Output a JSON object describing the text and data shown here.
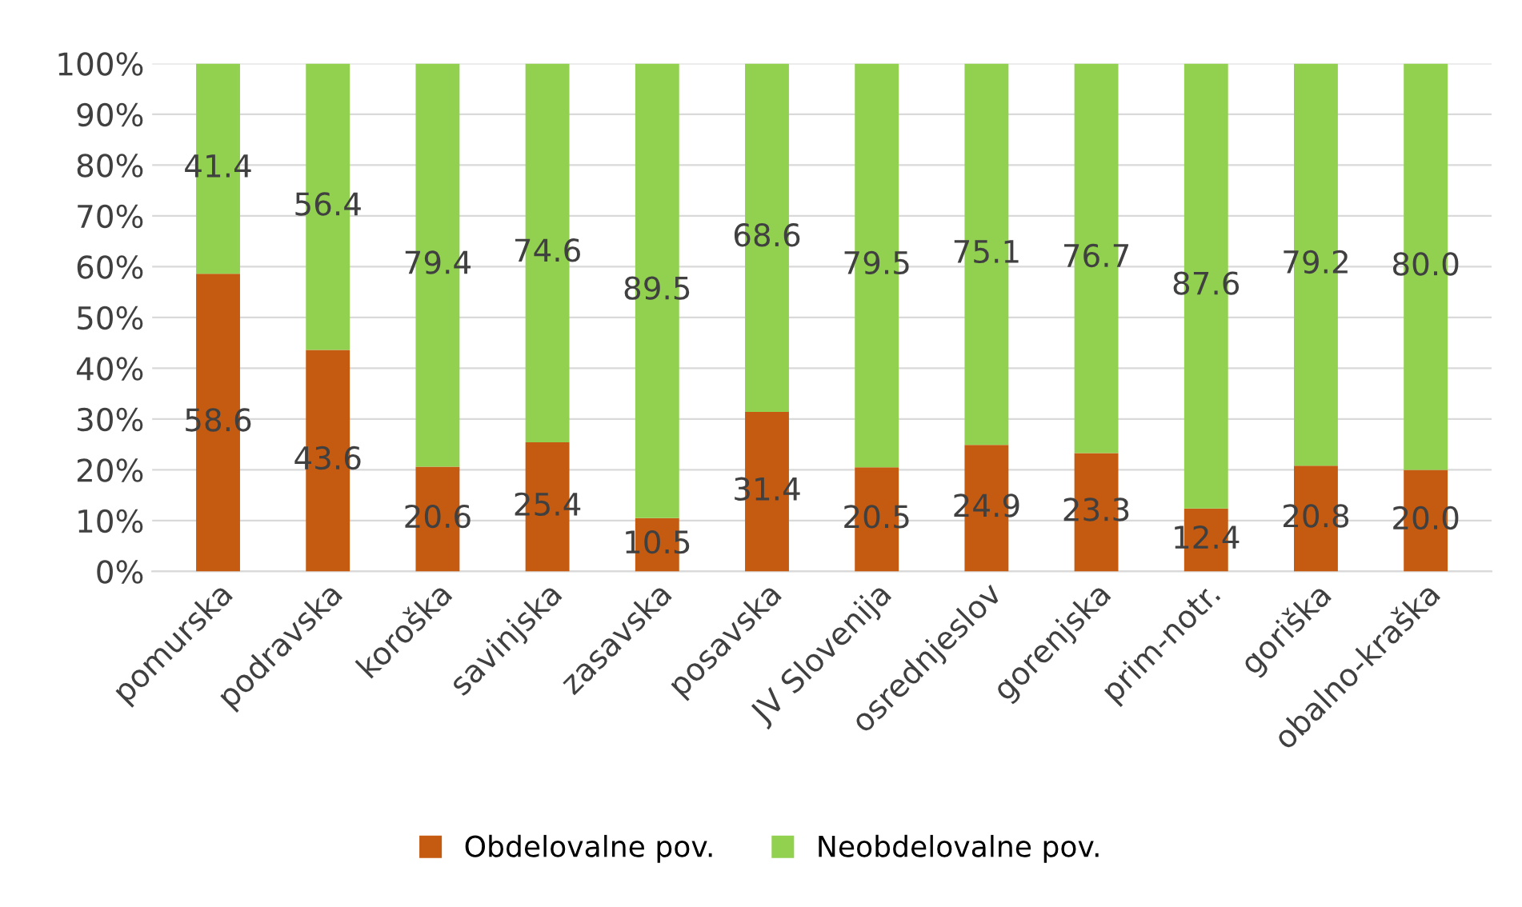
{
  "chart_data": {
    "type": "bar",
    "stacked": true,
    "categories": [
      "pomurska",
      "podravska",
      "koroška",
      "savinjska",
      "zasavska",
      "posavska",
      "JV Slovenija",
      "osrednjeslov",
      "gorenjska",
      "prim-notr.",
      "goriška",
      "obalno-kraška"
    ],
    "series": [
      {
        "name": "Obdelovalne pov.",
        "color": "#c55a11",
        "values": [
          58.6,
          43.6,
          20.6,
          25.4,
          10.5,
          31.4,
          20.5,
          24.9,
          23.3,
          12.4,
          20.8,
          20.0
        ],
        "value_labels": [
          "58.6",
          "43.6",
          "20.6",
          "25.4",
          "10.5",
          "31.4",
          "20.5",
          "24.9",
          "23.3",
          "12.4",
          "20.8",
          "20.0"
        ]
      },
      {
        "name": "Neobdelovalne pov.",
        "color": "#92d050",
        "values": [
          41.4,
          56.4,
          79.4,
          74.6,
          89.5,
          68.6,
          79.5,
          75.1,
          76.7,
          87.6,
          79.2,
          80.0
        ],
        "value_labels": [
          "41.4",
          "56.4",
          "79.4",
          "74.6",
          "89.5",
          "68.6",
          "79.5",
          "75.1",
          "76.7",
          "87.6",
          "79.2",
          "80.0"
        ]
      }
    ],
    "ylim": [
      0,
      100
    ],
    "yticks": [
      {
        "value": 0,
        "label": "0%"
      },
      {
        "value": 10,
        "label": "10%"
      },
      {
        "value": 20,
        "label": "20%"
      },
      {
        "value": 30,
        "label": "30%"
      },
      {
        "value": 40,
        "label": "40%"
      },
      {
        "value": 50,
        "label": "50%"
      },
      {
        "value": 60,
        "label": "60%"
      },
      {
        "value": 70,
        "label": "70%"
      },
      {
        "value": 80,
        "label": "80%"
      },
      {
        "value": 90,
        "label": "90%"
      },
      {
        "value": 100,
        "label": "100%"
      }
    ],
    "grid": "y",
    "legend": "bottom"
  }
}
